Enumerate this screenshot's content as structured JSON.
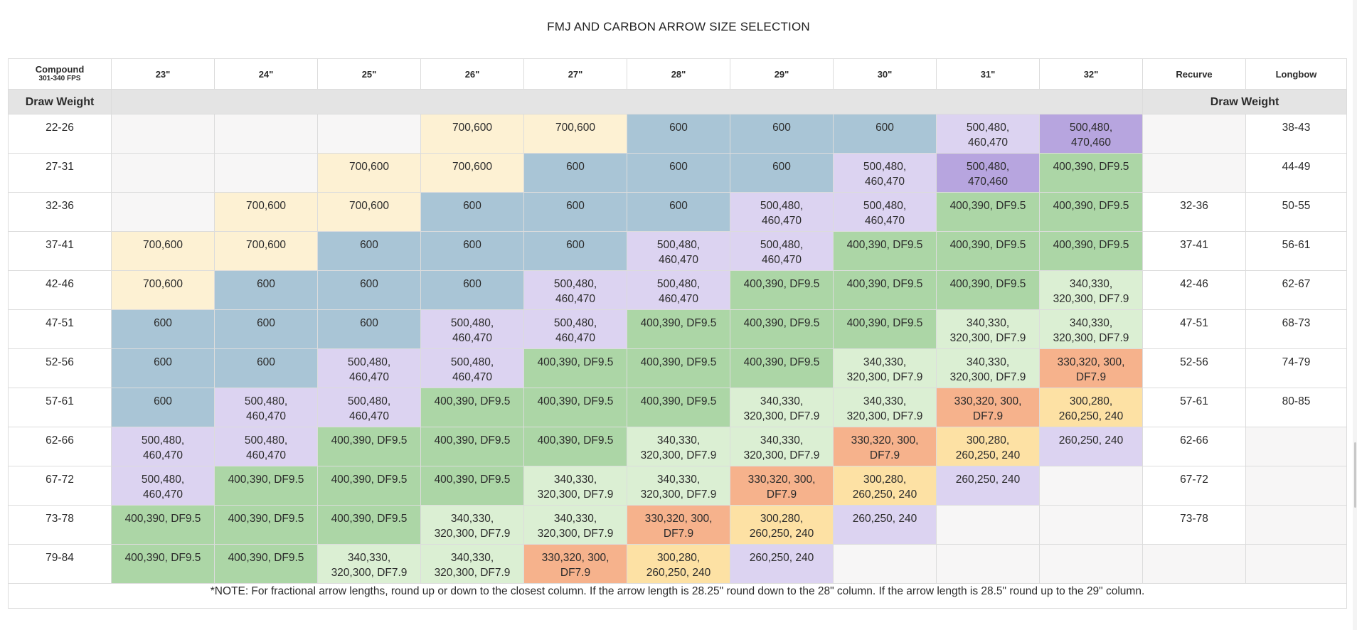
{
  "title": "FMJ AND CARBON ARROW SIZE SELECTION",
  "header": {
    "compound": "Compound",
    "fps": "301-340 FPS",
    "lengths": [
      "23\"",
      "24\"",
      "25\"",
      "26\"",
      "27\"",
      "28\"",
      "29\"",
      "30\"",
      "31\"",
      "32\""
    ],
    "recurve": "Recurve",
    "longbow": "Longbow"
  },
  "draw_weight_left": "Draw Weight",
  "draw_weight_right": "Draw Weight",
  "colors": {
    "e": "#f7f6f6",
    "w": "#ffffff",
    "y": "#fdf1d3",
    "b": "#a9c5d6",
    "l": "#dcd3f1",
    "p": "#b7a5df",
    "g": "#acd6a6",
    "lg": "#dbefd3",
    "o": "#f6b28c",
    "yo": "#fde1a4"
  },
  "rows": [
    {
      "weight": "22-26",
      "recurve": "",
      "longbow": "38-43",
      "cells": [
        [
          "",
          "e"
        ],
        [
          "",
          "e"
        ],
        [
          "",
          "e"
        ],
        [
          "700,600",
          "y"
        ],
        [
          "700,600",
          "y"
        ],
        [
          "600",
          "b"
        ],
        [
          "600",
          "b"
        ],
        [
          "600",
          "b"
        ],
        [
          "500,480,\n460,470",
          "l"
        ],
        [
          "500,480,\n470,460",
          "p"
        ]
      ]
    },
    {
      "weight": "27-31",
      "recurve": "",
      "longbow": "44-49",
      "cells": [
        [
          "",
          "e"
        ],
        [
          "",
          "e"
        ],
        [
          "700,600",
          "y"
        ],
        [
          "700,600",
          "y"
        ],
        [
          "600",
          "b"
        ],
        [
          "600",
          "b"
        ],
        [
          "600",
          "b"
        ],
        [
          "500,480,\n460,470",
          "l"
        ],
        [
          "500,480,\n470,460",
          "p"
        ],
        [
          "400,390, DF9.5",
          "g"
        ]
      ]
    },
    {
      "weight": "32-36",
      "recurve": "32-36",
      "longbow": "50-55",
      "cells": [
        [
          "",
          "e"
        ],
        [
          "700,600",
          "y"
        ],
        [
          "700,600",
          "y"
        ],
        [
          "600",
          "b"
        ],
        [
          "600",
          "b"
        ],
        [
          "600",
          "b"
        ],
        [
          "500,480,\n460,470",
          "l"
        ],
        [
          "500,480,\n460,470",
          "l"
        ],
        [
          "400,390, DF9.5",
          "g"
        ],
        [
          "400,390, DF9.5",
          "g"
        ]
      ]
    },
    {
      "weight": "37-41",
      "recurve": "37-41",
      "longbow": "56-61",
      "cells": [
        [
          "700,600",
          "y"
        ],
        [
          "700,600",
          "y"
        ],
        [
          "600",
          "b"
        ],
        [
          "600",
          "b"
        ],
        [
          "600",
          "b"
        ],
        [
          "500,480,\n460,470",
          "l"
        ],
        [
          "500,480,\n460,470",
          "l"
        ],
        [
          "400,390, DF9.5",
          "g"
        ],
        [
          "400,390, DF9.5",
          "g"
        ],
        [
          "400,390, DF9.5",
          "g"
        ]
      ]
    },
    {
      "weight": "42-46",
      "recurve": "42-46",
      "longbow": "62-67",
      "cells": [
        [
          "700,600",
          "y"
        ],
        [
          "600",
          "b"
        ],
        [
          "600",
          "b"
        ],
        [
          "600",
          "b"
        ],
        [
          "500,480,\n460,470",
          "l"
        ],
        [
          "500,480,\n460,470",
          "l"
        ],
        [
          "400,390, DF9.5",
          "g"
        ],
        [
          "400,390, DF9.5",
          "g"
        ],
        [
          "400,390, DF9.5",
          "g"
        ],
        [
          "340,330,\n320,300, DF7.9",
          "lg"
        ]
      ]
    },
    {
      "weight": "47-51",
      "recurve": "47-51",
      "longbow": "68-73",
      "cells": [
        [
          "600",
          "b"
        ],
        [
          "600",
          "b"
        ],
        [
          "600",
          "b"
        ],
        [
          "500,480,\n460,470",
          "l"
        ],
        [
          "500,480,\n460,470",
          "l"
        ],
        [
          "400,390, DF9.5",
          "g"
        ],
        [
          "400,390, DF9.5",
          "g"
        ],
        [
          "400,390, DF9.5",
          "g"
        ],
        [
          "340,330,\n320,300, DF7.9",
          "lg"
        ],
        [
          "340,330,\n320,300, DF7.9",
          "lg"
        ]
      ]
    },
    {
      "weight": "52-56",
      "recurve": "52-56",
      "longbow": "74-79",
      "cells": [
        [
          "600",
          "b"
        ],
        [
          "600",
          "b"
        ],
        [
          "500,480,\n460,470",
          "l"
        ],
        [
          "500,480,\n460,470",
          "l"
        ],
        [
          "400,390, DF9.5",
          "g"
        ],
        [
          "400,390, DF9.5",
          "g"
        ],
        [
          "400,390, DF9.5",
          "g"
        ],
        [
          "340,330,\n320,300, DF7.9",
          "lg"
        ],
        [
          "340,330,\n320,300, DF7.9",
          "lg"
        ],
        [
          "330,320, 300,\nDF7.9",
          "o"
        ]
      ]
    },
    {
      "weight": "57-61",
      "recurve": "57-61",
      "longbow": "80-85",
      "cells": [
        [
          "600",
          "b"
        ],
        [
          "500,480,\n460,470",
          "l"
        ],
        [
          "500,480,\n460,470",
          "l"
        ],
        [
          "400,390, DF9.5",
          "g"
        ],
        [
          "400,390, DF9.5",
          "g"
        ],
        [
          "400,390, DF9.5",
          "g"
        ],
        [
          "340,330,\n320,300, DF7.9",
          "lg"
        ],
        [
          "340,330,\n320,300, DF7.9",
          "lg"
        ],
        [
          "330,320, 300,\nDF7.9",
          "o"
        ],
        [
          "300,280,\n260,250, 240",
          "yo"
        ]
      ]
    },
    {
      "weight": "62-66",
      "recurve": "62-66",
      "longbow": "",
      "cells": [
        [
          "500,480,\n460,470",
          "l"
        ],
        [
          "500,480,\n460,470",
          "l"
        ],
        [
          "400,390, DF9.5",
          "g"
        ],
        [
          "400,390, DF9.5",
          "g"
        ],
        [
          "400,390, DF9.5",
          "g"
        ],
        [
          "340,330,\n320,300, DF7.9",
          "lg"
        ],
        [
          "340,330,\n320,300, DF7.9",
          "lg"
        ],
        [
          "330,320, 300,\nDF7.9",
          "o"
        ],
        [
          "300,280,\n260,250, 240",
          "yo"
        ],
        [
          "260,250, 240",
          "l"
        ]
      ]
    },
    {
      "weight": "67-72",
      "recurve": "67-72",
      "longbow": "",
      "cells": [
        [
          "500,480,\n460,470",
          "l"
        ],
        [
          "400,390, DF9.5",
          "g"
        ],
        [
          "400,390, DF9.5",
          "g"
        ],
        [
          "400,390, DF9.5",
          "g"
        ],
        [
          "340,330,\n320,300, DF7.9",
          "lg"
        ],
        [
          "340,330,\n320,300, DF7.9",
          "lg"
        ],
        [
          "330,320, 300,\nDF7.9",
          "o"
        ],
        [
          "300,280,\n260,250, 240",
          "yo"
        ],
        [
          "260,250, 240",
          "l"
        ],
        [
          "",
          "e"
        ]
      ]
    },
    {
      "weight": "73-78",
      "recurve": "73-78",
      "longbow": "",
      "cells": [
        [
          "400,390, DF9.5",
          "g"
        ],
        [
          "400,390, DF9.5",
          "g"
        ],
        [
          "400,390, DF9.5",
          "g"
        ],
        [
          "340,330,\n320,300, DF7.9",
          "lg"
        ],
        [
          "340,330,\n320,300, DF7.9",
          "lg"
        ],
        [
          "330,320, 300,\nDF7.9",
          "o"
        ],
        [
          "300,280,\n260,250, 240",
          "yo"
        ],
        [
          "260,250, 240",
          "l"
        ],
        [
          "",
          "e"
        ],
        [
          "",
          "e"
        ]
      ]
    },
    {
      "weight": "79-84",
      "recurve": "",
      "longbow": "",
      "cells": [
        [
          "400,390, DF9.5",
          "g"
        ],
        [
          "400,390, DF9.5",
          "g"
        ],
        [
          "340,330,\n320,300, DF7.9",
          "lg"
        ],
        [
          "340,330,\n320,300, DF7.9",
          "lg"
        ],
        [
          "330,320, 300,\nDF7.9",
          "o"
        ],
        [
          "300,280,\n260,250, 240",
          "yo"
        ],
        [
          "260,250, 240",
          "l"
        ],
        [
          "",
          "e"
        ],
        [
          "",
          "e"
        ],
        [
          "",
          "e"
        ]
      ]
    }
  ],
  "note": "*NOTE: For fractional arrow lengths, round up or down to the closest column. If the arrow length is 28.25\" round down to the 28\" column. If the arrow length is 28.5\" round up to the 29\" column."
}
